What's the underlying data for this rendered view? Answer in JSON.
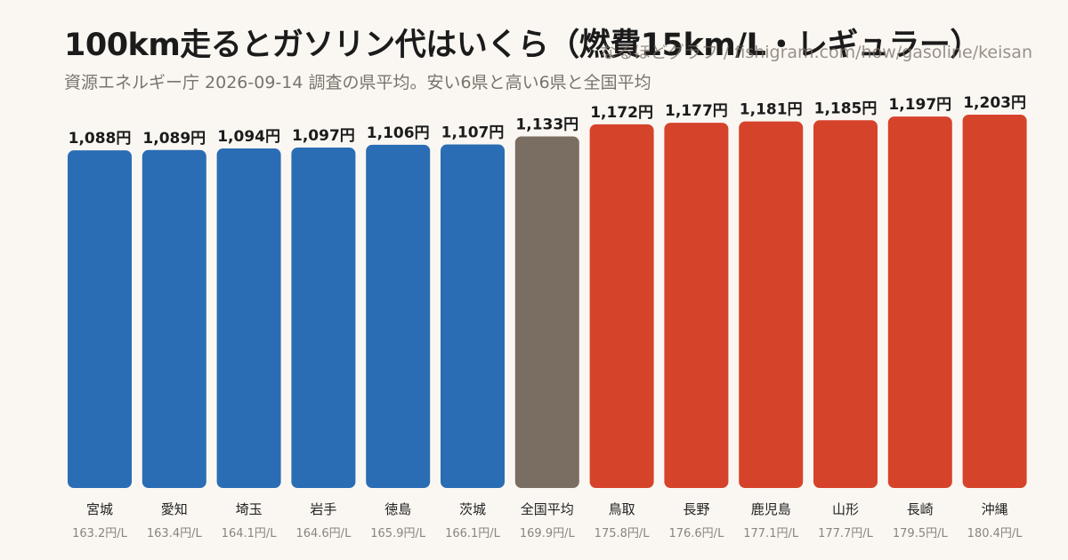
{
  "header": {
    "title": "100km走るとガソリン代はいくら（燃費15km/L・レギュラー）",
    "watermark": "なるほどグラフ / fishigram.com/how/gasoline/keisan",
    "subtitle": "資源エネルギー庁 2026-09-14 調査の県平均。安い6県と高い6県と全国平均"
  },
  "colors": {
    "cheap": "#2a6db4",
    "average": "#7a6d61",
    "expensive": "#d6432b"
  },
  "chart_data": {
    "type": "bar",
    "title": "100km走るとガソリン代はいくら（燃費15km/L・レギュラー）",
    "ylim": [
      0,
      1203
    ],
    "grid": false,
    "legend": "none",
    "categories": [
      "宮城",
      "愛知",
      "埼玉",
      "岩手",
      "徳島",
      "茨城",
      "全国平均",
      "鳥取",
      "長野",
      "鹿児島",
      "山形",
      "長崎",
      "沖縄"
    ],
    "values": [
      1088,
      1089,
      1094,
      1097,
      1106,
      1107,
      1133,
      1172,
      1177,
      1181,
      1185,
      1197,
      1203
    ],
    "value_labels": [
      "1,088円",
      "1,089円",
      "1,094円",
      "1,097円",
      "1,106円",
      "1,107円",
      "1,133円",
      "1,172円",
      "1,177円",
      "1,181円",
      "1,185円",
      "1,197円",
      "1,203円"
    ],
    "price_labels": [
      "163.2円/L",
      "163.4円/L",
      "164.1円/L",
      "164.6円/L",
      "165.9円/L",
      "166.1円/L",
      "169.9円/L",
      "175.8円/L",
      "176.6円/L",
      "177.1円/L",
      "177.7円/L",
      "179.5円/L",
      "180.4円/L"
    ],
    "groups": [
      "cheap",
      "cheap",
      "cheap",
      "cheap",
      "cheap",
      "cheap",
      "average",
      "expensive",
      "expensive",
      "expensive",
      "expensive",
      "expensive",
      "expensive"
    ]
  }
}
